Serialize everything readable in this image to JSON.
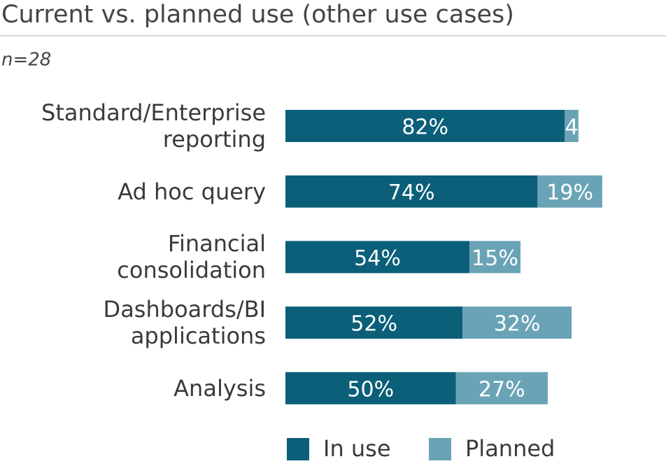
{
  "chart_data": {
    "type": "stacked_bar_horizontal",
    "title": "Current vs. planned use (other use cases)",
    "subtitle": "n=28",
    "categories": [
      "Standard/Enterprise\nreporting",
      "Ad hoc query",
      "Financial\nconsolidation",
      "Dashboards/BI\napplications",
      "Analysis"
    ],
    "series": [
      {
        "name": "In use",
        "color": "#0b5f79",
        "values": [
          82,
          74,
          54,
          52,
          50
        ],
        "value_labels": [
          "82%",
          "74%",
          "54%",
          "52%",
          "50%"
        ]
      },
      {
        "name": "Planned",
        "color": "#6aa3b6",
        "values": [
          4,
          19,
          15,
          32,
          27
        ],
        "value_labels": [
          "4",
          "19%",
          "15%",
          "32%",
          "27%"
        ]
      }
    ],
    "xlim": [
      0,
      100
    ]
  }
}
